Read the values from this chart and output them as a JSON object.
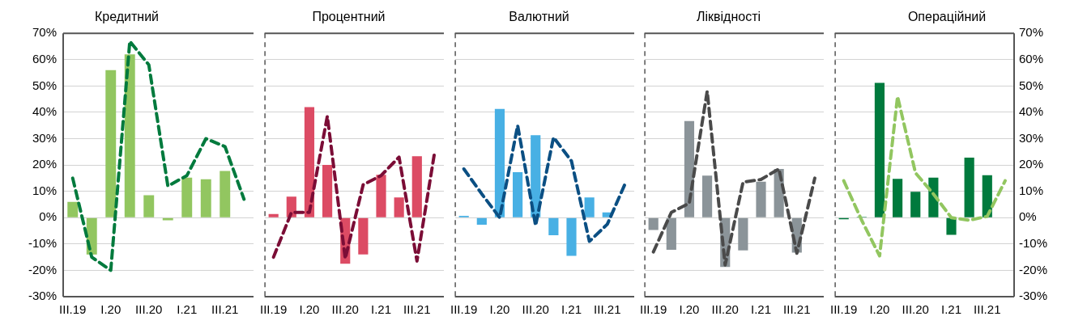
{
  "chart_data": [
    {
      "type": "bar",
      "title": "Кредитний",
      "categories": [
        "III.19",
        null,
        "I.20",
        null,
        "III.20",
        null,
        "I.21",
        null,
        "III.21",
        null
      ],
      "ylim": [
        -30,
        70
      ],
      "yticks": [
        {
          "value": -30,
          "label": "-30%"
        },
        {
          "value": -20,
          "label": "-20%"
        },
        {
          "value": -10,
          "label": "-10%"
        },
        {
          "value": 0,
          "label": "0%"
        },
        {
          "value": 10,
          "label": "10%"
        },
        {
          "value": 20,
          "label": "20%"
        },
        {
          "value": 30,
          "label": "30%"
        },
        {
          "value": 40,
          "label": "40%"
        },
        {
          "value": 50,
          "label": "50%"
        },
        {
          "value": 60,
          "label": "60%"
        },
        {
          "value": 70,
          "label": "70%"
        }
      ],
      "grid": "y",
      "series": [
        {
          "color": "#92c660",
          "values": [
            6,
            -14,
            56,
            62,
            8.5,
            -1,
            15.2,
            14.6,
            17.7,
            null
          ]
        },
        {
          "type": "line",
          "color": "#007a3d",
          "line_style": "dashed",
          "marker": "none",
          "values": [
            15,
            -15,
            -20,
            67,
            58,
            12,
            16,
            30,
            27,
            7
          ]
        }
      ]
    },
    {
      "type": "bar",
      "title": "Процентний",
      "categories": [
        "III.19",
        null,
        "I.20",
        null,
        "III.20",
        null,
        "I.21",
        null,
        "III.21",
        null
      ],
      "ylim": [
        -30,
        70
      ],
      "yticks": [
        -30,
        -20,
        -10,
        0,
        10,
        20,
        30,
        40,
        50,
        60,
        70
      ],
      "grid": "y",
      "tick_labels": "x",
      "series": [
        {
          "color": "#dc4b64",
          "values": [
            1.4,
            8,
            42,
            20,
            -17.5,
            -14,
            16.3,
            7.7,
            23.3,
            null
          ]
        },
        {
          "type": "line",
          "color": "#7b0d36",
          "line_style": "dashed",
          "marker": "none",
          "values": [
            -15,
            2,
            2,
            38.5,
            -15.5,
            12.5,
            16,
            23,
            -16.5,
            25.5
          ]
        }
      ]
    },
    {
      "type": "bar",
      "title": "Валютний",
      "categories": [
        "III.19",
        null,
        "I.20",
        null,
        "III.20",
        null,
        "I.21",
        null,
        "III.21",
        null
      ],
      "ylim": [
        -30,
        70
      ],
      "yticks": [
        -30,
        -20,
        -10,
        0,
        10,
        20,
        30,
        40,
        50,
        60,
        70
      ],
      "grid": "y",
      "tick_labels": "x",
      "series": [
        {
          "color": "#48b0e4",
          "values": [
            0.7,
            -2.7,
            41.3,
            17.3,
            31.3,
            -6.7,
            -14.5,
            7.7,
            2,
            null
          ]
        },
        {
          "type": "line",
          "color": "#0b4f83",
          "line_style": "dashed",
          "marker": "none",
          "values": [
            18.5,
            9,
            0,
            35,
            -3,
            30.5,
            21.5,
            -9,
            -2.5,
            13
          ]
        }
      ]
    },
    {
      "type": "bar",
      "title": "Ліквідності",
      "categories": [
        "III.19",
        null,
        "I.20",
        null,
        "III.20",
        null,
        "I.21",
        null,
        "III.21",
        null
      ],
      "ylim": [
        -30,
        70
      ],
      "yticks": [
        -30,
        -20,
        -10,
        0,
        10,
        20,
        30,
        40,
        50,
        60,
        70
      ],
      "grid": "y",
      "tick_labels": "x",
      "series": [
        {
          "color": "#8b9499",
          "values": [
            -4.7,
            -12.2,
            36.7,
            16,
            -18.7,
            -12.4,
            13.7,
            18.5,
            -13.3,
            null
          ]
        },
        {
          "type": "line",
          "color": "#4a4a4a",
          "line_style": "dashed",
          "marker": "none",
          "values": [
            -13,
            2,
            5.5,
            48,
            -18,
            13.5,
            14.5,
            18.5,
            -13.5,
            15
          ]
        }
      ]
    },
    {
      "type": "bar",
      "title": "Операційний",
      "categories": [
        "III.19",
        null,
        "I.20",
        null,
        "III.20",
        null,
        "I.21",
        null,
        "III.21",
        null
      ],
      "y2lim": [
        -30,
        70
      ],
      "y2ticks": [
        {
          "value": -30,
          "label": "-30%"
        },
        {
          "value": -20,
          "label": "-20%"
        },
        {
          "value": -10,
          "label": "-10%"
        },
        {
          "value": 0,
          "label": "0%"
        },
        {
          "value": 10,
          "label": "10%"
        },
        {
          "value": 20,
          "label": "20%"
        },
        {
          "value": 30,
          "label": "30%"
        },
        {
          "value": 40,
          "label": "40%"
        },
        {
          "value": 50,
          "label": "50%"
        },
        {
          "value": 60,
          "label": "60%"
        },
        {
          "value": 70,
          "label": "70%"
        }
      ],
      "grid": "y",
      "series": [
        {
          "axis": "y2",
          "color": "#007a3d",
          "values": [
            -0.6,
            0.3,
            51.2,
            14.7,
            9.8,
            15.2,
            -6.5,
            22.8,
            16.1,
            null
          ]
        },
        {
          "type": "line",
          "axis": "y2",
          "color": "#92c660",
          "line_style": "dashed",
          "marker": "none",
          "values": [
            14,
            -1,
            -14.5,
            46,
            17,
            9,
            0,
            -1,
            0.5,
            14
          ]
        }
      ]
    }
  ]
}
